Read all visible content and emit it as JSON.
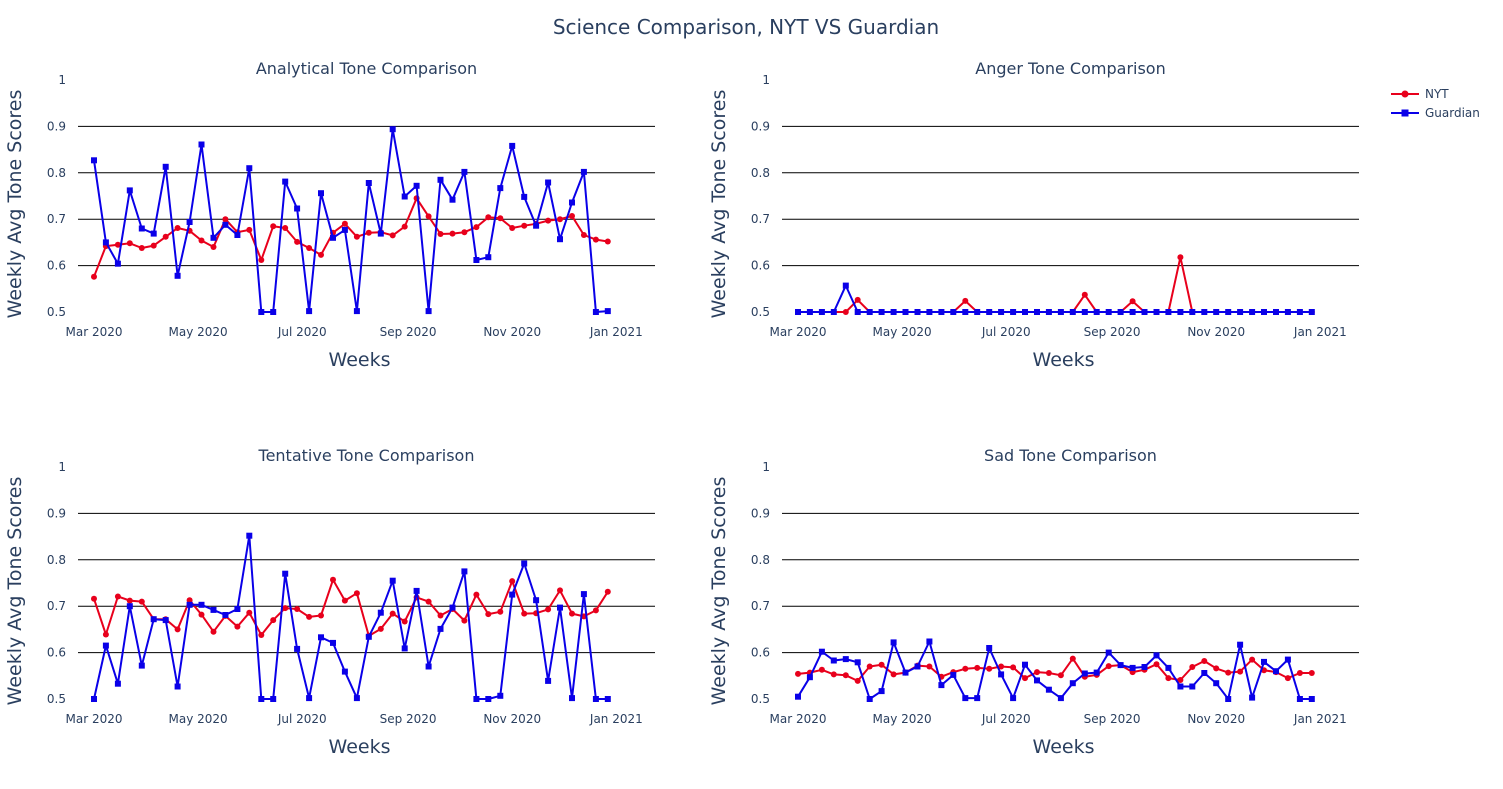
{
  "figure": {
    "title": "Science Comparison, NYT VS Guardian",
    "colors": {
      "NYT": "#e8001c",
      "Guardian": "#0a00e8",
      "text": "#2a3f5f",
      "grid": "#000000"
    }
  },
  "legend": {
    "placement": "top-right",
    "items": [
      "NYT",
      "Guardian"
    ]
  },
  "chart_data": [
    {
      "type": "line",
      "title": "Analytical Tone Comparison",
      "xlabel": "Weeks",
      "ylabel": "Weekly Avg Tone Scores",
      "ylim": [
        0.5,
        1
      ],
      "yticks": [
        "0.5",
        "0.6",
        "0.7",
        "0.8",
        "0.9",
        "1"
      ],
      "xticks": [
        "Mar 2020",
        "May 2020",
        "Jul 2020",
        "Sep 2020",
        "Nov 2020",
        "Jan 2021"
      ],
      "x_start": "2020-03-01",
      "x_end": "2020-12-27",
      "series": [
        {
          "name": "NYT",
          "values": [
            0.576,
            0.642,
            0.645,
            0.648,
            0.638,
            0.643,
            0.662,
            0.681,
            0.675,
            0.654,
            0.64,
            0.7,
            0.672,
            0.677,
            0.612,
            0.685,
            0.681,
            0.651,
            0.638,
            0.623,
            0.671,
            0.69,
            0.662,
            0.671,
            0.672,
            0.665,
            0.684,
            0.745,
            0.706,
            0.668,
            0.669,
            0.672,
            0.683,
            0.704,
            0.702,
            0.681,
            0.686,
            0.69,
            0.697,
            0.7,
            0.707,
            0.666,
            0.656,
            0.652
          ]
        },
        {
          "name": "Guardian",
          "values": [
            0.827,
            0.65,
            0.604,
            0.762,
            0.68,
            0.669,
            0.813,
            0.578,
            0.694,
            0.861,
            0.66,
            0.688,
            0.666,
            0.81,
            0.5,
            0.5,
            0.781,
            0.723,
            0.502,
            0.756,
            0.66,
            0.677,
            0.502,
            0.778,
            0.669,
            0.894,
            0.749,
            0.772,
            0.502,
            0.785,
            0.742,
            0.802,
            0.612,
            0.618,
            0.767,
            0.858,
            0.748,
            0.686,
            0.779,
            0.657,
            0.736,
            0.802,
            0.5,
            0.502
          ]
        }
      ]
    },
    {
      "type": "line",
      "title": "Anger Tone Comparison",
      "xlabel": "Weeks",
      "ylabel": "Weekly Avg Tone Scores",
      "ylim": [
        0.5,
        1
      ],
      "yticks": [
        "0.5",
        "0.6",
        "0.7",
        "0.8",
        "0.9",
        "1"
      ],
      "xticks": [
        "Mar 2020",
        "May 2020",
        "Jul 2020",
        "Sep 2020",
        "Nov 2020",
        "Jan 2021"
      ],
      "x_start": "2020-03-01",
      "x_end": "2020-12-27",
      "series": [
        {
          "name": "NYT",
          "values": [
            0.5,
            0.5,
            0.5,
            0.5,
            0.5,
            0.526,
            0.5,
            0.5,
            0.5,
            0.5,
            0.5,
            0.5,
            0.5,
            0.5,
            0.524,
            0.5,
            0.5,
            0.5,
            0.5,
            0.5,
            0.5,
            0.5,
            0.5,
            0.5,
            0.537,
            0.5,
            0.5,
            0.5,
            0.523,
            0.5,
            0.5,
            0.5,
            0.618,
            0.5,
            0.5,
            0.5,
            0.5,
            0.5,
            0.5,
            0.5,
            0.5,
            0.5,
            0.5,
            0.5
          ]
        },
        {
          "name": "Guardian",
          "values": [
            0.5,
            0.5,
            0.5,
            0.5,
            0.557,
            0.5,
            0.5,
            0.5,
            0.5,
            0.5,
            0.5,
            0.5,
            0.5,
            0.5,
            0.5,
            0.5,
            0.5,
            0.5,
            0.5,
            0.5,
            0.5,
            0.5,
            0.5,
            0.5,
            0.5,
            0.5,
            0.5,
            0.5,
            0.5,
            0.5,
            0.5,
            0.5,
            0.5,
            0.5,
            0.5,
            0.5,
            0.5,
            0.5,
            0.5,
            0.5,
            0.5,
            0.5,
            0.5,
            0.5
          ]
        }
      ]
    },
    {
      "type": "line",
      "title": "Tentative Tone Comparison",
      "xlabel": "Weeks",
      "ylabel": "Weekly Avg Tone Scores",
      "ylim": [
        0.5,
        1
      ],
      "yticks": [
        "0.5",
        "0.6",
        "0.7",
        "0.8",
        "0.9",
        "1"
      ],
      "xticks": [
        "Mar 2020",
        "May 2020",
        "Jul 2020",
        "Sep 2020",
        "Nov 2020",
        "Jan 2021"
      ],
      "x_start": "2020-03-01",
      "x_end": "2020-12-27",
      "series": [
        {
          "name": "NYT",
          "values": [
            0.716,
            0.639,
            0.721,
            0.712,
            0.71,
            0.672,
            0.672,
            0.65,
            0.713,
            0.682,
            0.645,
            0.679,
            0.656,
            0.686,
            0.638,
            0.67,
            0.696,
            0.694,
            0.677,
            0.68,
            0.757,
            0.712,
            0.728,
            0.636,
            0.651,
            0.684,
            0.667,
            0.719,
            0.71,
            0.68,
            0.694,
            0.669,
            0.725,
            0.683,
            0.688,
            0.754,
            0.684,
            0.685,
            0.693,
            0.734,
            0.684,
            0.678,
            0.691,
            0.731
          ]
        },
        {
          "name": "Guardian",
          "values": [
            0.5,
            0.615,
            0.533,
            0.7,
            0.572,
            0.672,
            0.67,
            0.527,
            0.703,
            0.703,
            0.692,
            0.681,
            0.694,
            0.852,
            0.5,
            0.5,
            0.77,
            0.608,
            0.502,
            0.633,
            0.621,
            0.559,
            0.502,
            0.634,
            0.686,
            0.755,
            0.609,
            0.733,
            0.57,
            0.651,
            0.697,
            0.775,
            0.5,
            0.5,
            0.507,
            0.725,
            0.792,
            0.713,
            0.539,
            0.697,
            0.502,
            0.726,
            0.5,
            0.5
          ]
        }
      ]
    },
    {
      "type": "line",
      "title": "Sad Tone Comparison",
      "xlabel": "Weeks",
      "ylabel": "Weekly Avg Tone Scores",
      "ylim": [
        0.5,
        1
      ],
      "yticks": [
        "0.5",
        "0.6",
        "0.7",
        "0.8",
        "0.9",
        "1"
      ],
      "xticks": [
        "Mar 2020",
        "May 2020",
        "Jul 2020",
        "Sep 2020",
        "Nov 2020",
        "Jan 2021"
      ],
      "x_start": "2020-03-01",
      "x_end": "2020-12-27",
      "series": [
        {
          "name": "NYT",
          "values": [
            0.554,
            0.557,
            0.563,
            0.553,
            0.551,
            0.539,
            0.57,
            0.574,
            0.553,
            0.557,
            0.572,
            0.57,
            0.548,
            0.558,
            0.565,
            0.567,
            0.565,
            0.57,
            0.568,
            0.545,
            0.558,
            0.556,
            0.551,
            0.587,
            0.548,
            0.552,
            0.571,
            0.573,
            0.558,
            0.563,
            0.575,
            0.545,
            0.541,
            0.569,
            0.582,
            0.566,
            0.557,
            0.559,
            0.585,
            0.562,
            0.558,
            0.545,
            0.556,
            0.556
          ]
        },
        {
          "name": "Guardian",
          "values": [
            0.505,
            0.547,
            0.602,
            0.583,
            0.586,
            0.579,
            0.5,
            0.517,
            0.622,
            0.557,
            0.57,
            0.624,
            0.53,
            0.552,
            0.502,
            0.502,
            0.61,
            0.553,
            0.502,
            0.574,
            0.54,
            0.52,
            0.502,
            0.534,
            0.555,
            0.557,
            0.6,
            0.573,
            0.567,
            0.569,
            0.594,
            0.567,
            0.527,
            0.527,
            0.556,
            0.534,
            0.5,
            0.617,
            0.503,
            0.58,
            0.56,
            0.585,
            0.5,
            0.5
          ]
        }
      ]
    }
  ]
}
